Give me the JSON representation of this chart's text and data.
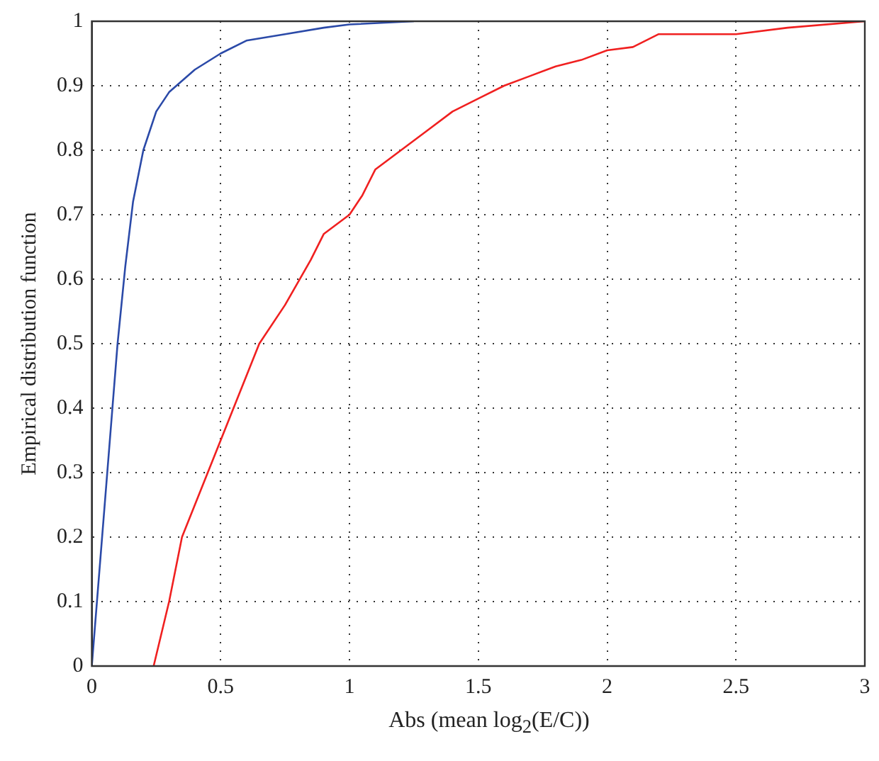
{
  "chart_data": {
    "type": "line",
    "xlabel": "Abs (mean log$_{2}$(E/C))",
    "ylabel": "Empirical distribution function",
    "xlim": [
      0,
      3
    ],
    "xticks": [
      0,
      0.5,
      1,
      1.5,
      2,
      2.5,
      3
    ],
    "ylim": [
      0,
      1
    ],
    "yticks": [
      0,
      0.1,
      0.2,
      0.3,
      0.4,
      0.5,
      0.6,
      0.7,
      0.8,
      0.9,
      1
    ],
    "grid": true,
    "line_style": "solid",
    "marker": "none",
    "series": [
      {
        "color": "#2b4aa8",
        "x": [
          0,
          0.02,
          0.05,
          0.08,
          0.1,
          0.13,
          0.16,
          0.2,
          0.25,
          0.3,
          0.4,
          0.5,
          0.6,
          0.75,
          0.9,
          1.0,
          1.25
        ],
        "values": [
          0,
          0.1,
          0.25,
          0.4,
          0.5,
          0.62,
          0.72,
          0.8,
          0.86,
          0.89,
          0.925,
          0.95,
          0.97,
          0.98,
          0.99,
          0.995,
          1
        ]
      },
      {
        "color": "#f02020",
        "x": [
          0.24,
          0.3,
          0.35,
          0.4,
          0.45,
          0.5,
          0.55,
          0.6,
          0.65,
          0.75,
          0.85,
          0.9,
          1.0,
          1.05,
          1.1,
          1.2,
          1.3,
          1.4,
          1.5,
          1.6,
          1.7,
          1.8,
          1.9,
          2.0,
          2.1,
          2.2,
          2.5,
          2.7,
          3.0
        ],
        "values": [
          0,
          0.1,
          0.2,
          0.25,
          0.3,
          0.35,
          0.4,
          0.45,
          0.5,
          0.56,
          0.63,
          0.67,
          0.7,
          0.73,
          0.77,
          0.8,
          0.83,
          0.86,
          0.88,
          0.9,
          0.915,
          0.93,
          0.94,
          0.955,
          0.96,
          0.98,
          0.98,
          0.99,
          1.0
        ]
      }
    ]
  }
}
